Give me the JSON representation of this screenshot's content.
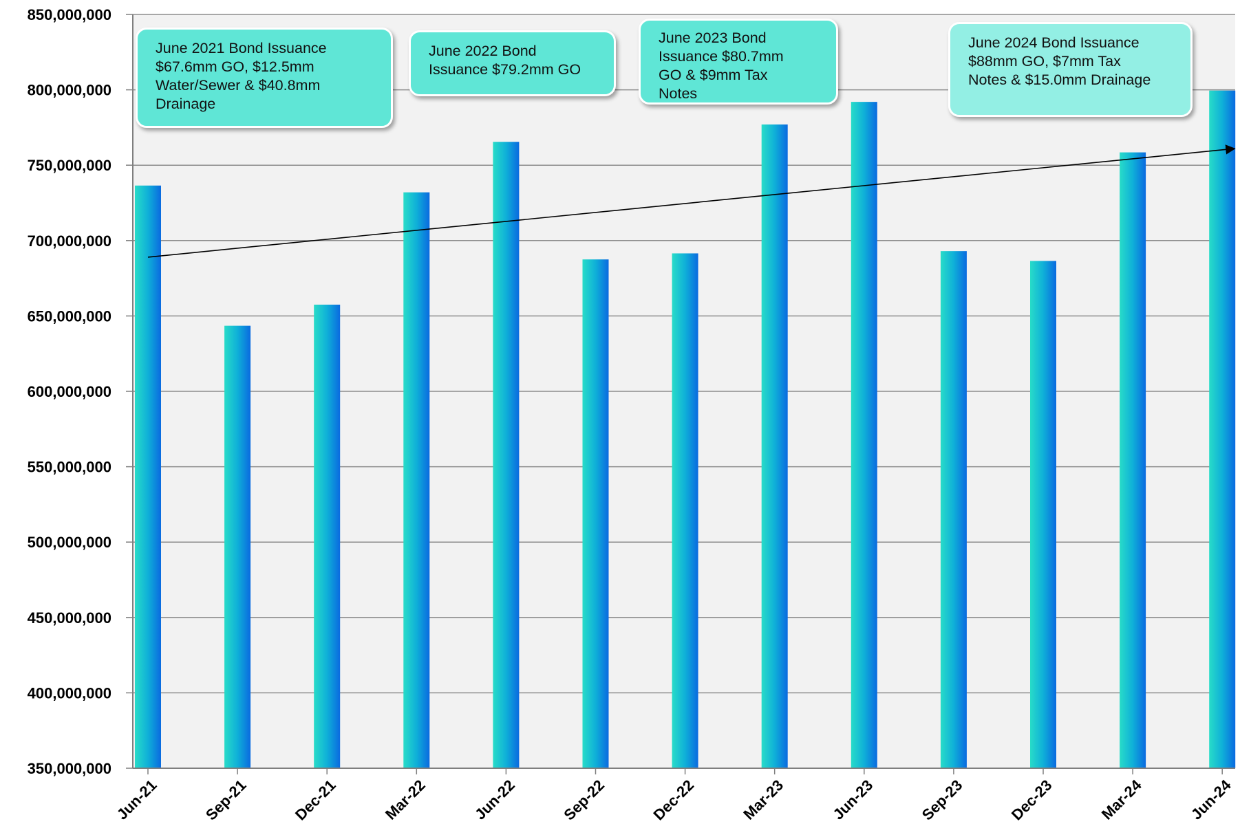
{
  "chart_data": {
    "type": "bar",
    "categories": [
      "Jun-21",
      "Sep-21",
      "Dec-21",
      "Mar-22",
      "Jun-22",
      "Sep-22",
      "Dec-22",
      "Mar-23",
      "Jun-23",
      "Sep-23",
      "Dec-23",
      "Mar-24",
      "Jun-24"
    ],
    "values": [
      736500000,
      643500000,
      657500000,
      732000000,
      765500000,
      687500000,
      691500000,
      777000000,
      792000000,
      693000000,
      686500000,
      758500000,
      799500000
    ],
    "ylim": [
      350000000,
      850000000
    ],
    "yticks": [
      350000000,
      400000000,
      450000000,
      500000000,
      550000000,
      600000000,
      650000000,
      700000000,
      750000000,
      800000000,
      850000000
    ],
    "ytick_labels": [
      "350,000,000",
      "400,000,000",
      "450,000,000",
      "500,000,000",
      "550,000,000",
      "600,000,000",
      "650,000,000",
      "700,000,000",
      "750,000,000",
      "800,000,000",
      "850,000,000"
    ],
    "grid": true,
    "trendline": {
      "start": [
        "Jun-21",
        689000000
      ],
      "end": [
        "Jun-24",
        761000000
      ]
    },
    "colors": {
      "bar_light": "#28dcc8",
      "bar_dark": "#0a6ae0",
      "callout": "#5fe6d6",
      "callout_light": "#93efe4",
      "plot_bg": "#f2f2f2",
      "grid": "#8c8c8c"
    },
    "annotations": [
      {
        "id": "jun21",
        "text": "June 2021 Bond Issuance\n$67.6mm GO, $12.5mm\nWater/Sewer & $40.8mm\nDrainage",
        "points_to": "Jun-21"
      },
      {
        "id": "jun22",
        "text": "June 2022 Bond\nIssuance $79.2mm GO",
        "points_to": "Jun-22"
      },
      {
        "id": "jun23",
        "text": "June 2023 Bond\nIssuance $80.7mm\nGO & $9mm Tax\nNotes",
        "points_to": "Jun-23"
      },
      {
        "id": "jun24",
        "text": "June 2024 Bond Issuance\n$88mm GO, $7mm Tax\nNotes & $15.0mm Drainage",
        "points_to": "Jun-24"
      }
    ]
  }
}
